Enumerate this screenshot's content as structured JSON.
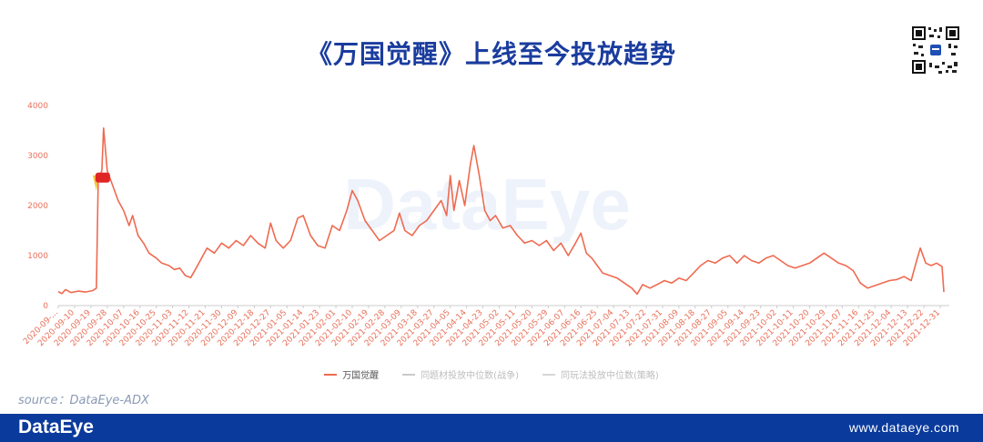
{
  "header": {
    "title": "《万国觉醒》上线至今投放趋势"
  },
  "watermark": "DataEye",
  "source": "source：DataEye-ADX",
  "footer": {
    "logo": "DataEye",
    "url": "www.dataeye.com"
  },
  "colors": {
    "series_main": "#ef6a50",
    "series_other1": "#c9c9c9",
    "series_other2": "#d6d6d6",
    "footer_bg": "#0a3a9c",
    "title": "#1a3c9e",
    "axis_text": "#e8715a",
    "highlight": "#e02525"
  },
  "legend": [
    {
      "label": "万国觉醒",
      "color": "#ef6a50"
    },
    {
      "label": "同题材投放中位数(战争)",
      "color": "#c9c9c9"
    },
    {
      "label": "同玩法投放中位数(策略)",
      "color": "#d6d6d6"
    }
  ],
  "chart_data": {
    "type": "line",
    "title": "《万国觉醒》上线至今投放趋势",
    "x_range": [
      "2020-09-01",
      "2022-01-05"
    ],
    "ylim": [
      0,
      4000
    ],
    "yticks": [
      0,
      1000,
      2000,
      3000,
      4000
    ],
    "xtick_labels": [
      "2020-09-...",
      "2020-09-10",
      "2020-09-19",
      "2020-09-28",
      "2020-10-07",
      "2020-10-16",
      "2020-10-25",
      "2020-11-03",
      "2020-11-12",
      "2020-11-21",
      "2020-11-30",
      "2020-12-09",
      "2020-12-18",
      "2020-12-27",
      "2021-01-05",
      "2021-01-14",
      "2021-01-23",
      "2021-02-01",
      "2021-02-10",
      "2021-02-19",
      "2021-02-28",
      "2021-03-09",
      "2021-03-18",
      "2021-03-27",
      "2021-04-05",
      "2021-04-14",
      "2021-04-23",
      "2021-05-02",
      "2021-05-11",
      "2021-05-20",
      "2021-05-29",
      "2021-06-07",
      "2021-06-16",
      "2021-06-25",
      "2021-07-04",
      "2021-07-13",
      "2021-07-22",
      "2021-07-31",
      "2021-08-09",
      "2021-08-18",
      "2021-08-27",
      "2021-09-05",
      "2021-09-14",
      "2021-09-23",
      "2021-10-02",
      "2021-10-11",
      "2021-10-20",
      "2021-10-29",
      "2021-11-07",
      "2021-11-16",
      "2021-11-25",
      "2021-12-04",
      "2021-12-13",
      "2021-12-22",
      "2021-12-31"
    ],
    "grid": false,
    "legend_position": "bottom",
    "series": [
      {
        "name": "万国觉醒",
        "points": [
          [
            "2020-09-01",
            280
          ],
          [
            "2020-09-03",
            240
          ],
          [
            "2020-09-05",
            320
          ],
          [
            "2020-09-08",
            260
          ],
          [
            "2020-09-12",
            290
          ],
          [
            "2020-09-16",
            270
          ],
          [
            "2020-09-20",
            300
          ],
          [
            "2020-09-22",
            350
          ],
          [
            "2020-09-23",
            2500
          ],
          [
            "2020-09-25",
            2700
          ],
          [
            "2020-09-26",
            3550
          ],
          [
            "2020-09-28",
            2700
          ],
          [
            "2020-10-01",
            2400
          ],
          [
            "2020-10-04",
            2100
          ],
          [
            "2020-10-07",
            1900
          ],
          [
            "2020-10-10",
            1600
          ],
          [
            "2020-10-12",
            1800
          ],
          [
            "2020-10-15",
            1400
          ],
          [
            "2020-10-18",
            1250
          ],
          [
            "2020-10-21",
            1050
          ],
          [
            "2020-10-25",
            950
          ],
          [
            "2020-10-28",
            850
          ],
          [
            "2020-11-01",
            800
          ],
          [
            "2020-11-04",
            720
          ],
          [
            "2020-11-07",
            750
          ],
          [
            "2020-11-10",
            600
          ],
          [
            "2020-11-13",
            560
          ],
          [
            "2020-11-16",
            750
          ],
          [
            "2020-11-19",
            950
          ],
          [
            "2020-11-22",
            1150
          ],
          [
            "2020-11-26",
            1050
          ],
          [
            "2020-11-30",
            1250
          ],
          [
            "2020-12-04",
            1150
          ],
          [
            "2020-12-08",
            1300
          ],
          [
            "2020-12-12",
            1200
          ],
          [
            "2020-12-16",
            1400
          ],
          [
            "2020-12-20",
            1250
          ],
          [
            "2020-12-24",
            1150
          ],
          [
            "2020-12-27",
            1650
          ],
          [
            "2020-12-30",
            1300
          ],
          [
            "2021-01-03",
            1150
          ],
          [
            "2021-01-07",
            1300
          ],
          [
            "2021-01-11",
            1750
          ],
          [
            "2021-01-14",
            1800
          ],
          [
            "2021-01-18",
            1400
          ],
          [
            "2021-01-22",
            1200
          ],
          [
            "2021-01-26",
            1150
          ],
          [
            "2021-01-30",
            1600
          ],
          [
            "2021-02-03",
            1500
          ],
          [
            "2021-02-07",
            1900
          ],
          [
            "2021-02-10",
            2300
          ],
          [
            "2021-02-13",
            2100
          ],
          [
            "2021-02-17",
            1700
          ],
          [
            "2021-02-21",
            1500
          ],
          [
            "2021-02-25",
            1300
          ],
          [
            "2021-03-01",
            1400
          ],
          [
            "2021-03-05",
            1500
          ],
          [
            "2021-03-08",
            1850
          ],
          [
            "2021-03-11",
            1500
          ],
          [
            "2021-03-15",
            1400
          ],
          [
            "2021-03-19",
            1600
          ],
          [
            "2021-03-23",
            1700
          ],
          [
            "2021-03-27",
            1900
          ],
          [
            "2021-03-31",
            2100
          ],
          [
            "2021-04-03",
            1800
          ],
          [
            "2021-04-05",
            2600
          ],
          [
            "2021-04-07",
            1900
          ],
          [
            "2021-04-10",
            2500
          ],
          [
            "2021-04-13",
            2000
          ],
          [
            "2021-04-16",
            2800
          ],
          [
            "2021-04-18",
            3200
          ],
          [
            "2021-04-21",
            2600
          ],
          [
            "2021-04-24",
            1900
          ],
          [
            "2021-04-27",
            1700
          ],
          [
            "2021-04-30",
            1800
          ],
          [
            "2021-05-04",
            1550
          ],
          [
            "2021-05-08",
            1600
          ],
          [
            "2021-05-12",
            1400
          ],
          [
            "2021-05-16",
            1250
          ],
          [
            "2021-05-20",
            1300
          ],
          [
            "2021-05-24",
            1200
          ],
          [
            "2021-05-28",
            1300
          ],
          [
            "2021-06-01",
            1100
          ],
          [
            "2021-06-05",
            1250
          ],
          [
            "2021-06-09",
            1000
          ],
          [
            "2021-06-13",
            1250
          ],
          [
            "2021-06-16",
            1450
          ],
          [
            "2021-06-19",
            1050
          ],
          [
            "2021-06-22",
            950
          ],
          [
            "2021-06-25",
            800
          ],
          [
            "2021-06-28",
            650
          ],
          [
            "2021-07-02",
            600
          ],
          [
            "2021-07-06",
            550
          ],
          [
            "2021-07-10",
            450
          ],
          [
            "2021-07-14",
            350
          ],
          [
            "2021-07-17",
            230
          ],
          [
            "2021-07-20",
            420
          ],
          [
            "2021-07-24",
            350
          ],
          [
            "2021-07-28",
            420
          ],
          [
            "2021-08-01",
            500
          ],
          [
            "2021-08-05",
            450
          ],
          [
            "2021-08-09",
            550
          ],
          [
            "2021-08-13",
            500
          ],
          [
            "2021-08-17",
            650
          ],
          [
            "2021-08-21",
            800
          ],
          [
            "2021-08-25",
            900
          ],
          [
            "2021-08-29",
            850
          ],
          [
            "2021-09-02",
            950
          ],
          [
            "2021-09-06",
            1000
          ],
          [
            "2021-09-10",
            850
          ],
          [
            "2021-09-14",
            1000
          ],
          [
            "2021-09-18",
            900
          ],
          [
            "2021-09-22",
            850
          ],
          [
            "2021-09-26",
            950
          ],
          [
            "2021-09-30",
            1000
          ],
          [
            "2021-10-04",
            900
          ],
          [
            "2021-10-08",
            800
          ],
          [
            "2021-10-12",
            750
          ],
          [
            "2021-10-16",
            800
          ],
          [
            "2021-10-20",
            850
          ],
          [
            "2021-10-24",
            950
          ],
          [
            "2021-10-28",
            1050
          ],
          [
            "2021-11-01",
            950
          ],
          [
            "2021-11-05",
            850
          ],
          [
            "2021-11-09",
            800
          ],
          [
            "2021-11-13",
            700
          ],
          [
            "2021-11-17",
            450
          ],
          [
            "2021-11-21",
            350
          ],
          [
            "2021-11-25",
            400
          ],
          [
            "2021-11-29",
            450
          ],
          [
            "2021-12-03",
            500
          ],
          [
            "2021-12-07",
            520
          ],
          [
            "2021-12-11",
            580
          ],
          [
            "2021-12-15",
            500
          ],
          [
            "2021-12-18",
            900
          ],
          [
            "2021-12-20",
            1150
          ],
          [
            "2021-12-23",
            850
          ],
          [
            "2021-12-26",
            800
          ],
          [
            "2021-12-29",
            850
          ],
          [
            "2022-01-01",
            780
          ],
          [
            "2022-01-02",
            270
          ]
        ]
      },
      {
        "name": "同题材投放中位数(战争)",
        "points": []
      },
      {
        "name": "同玩法投放中位数(策略)",
        "points": []
      }
    ],
    "annotations": [
      {
        "type": "marker",
        "x": "2020-09-24",
        "y": 2550,
        "color": "#e02525"
      }
    ]
  }
}
